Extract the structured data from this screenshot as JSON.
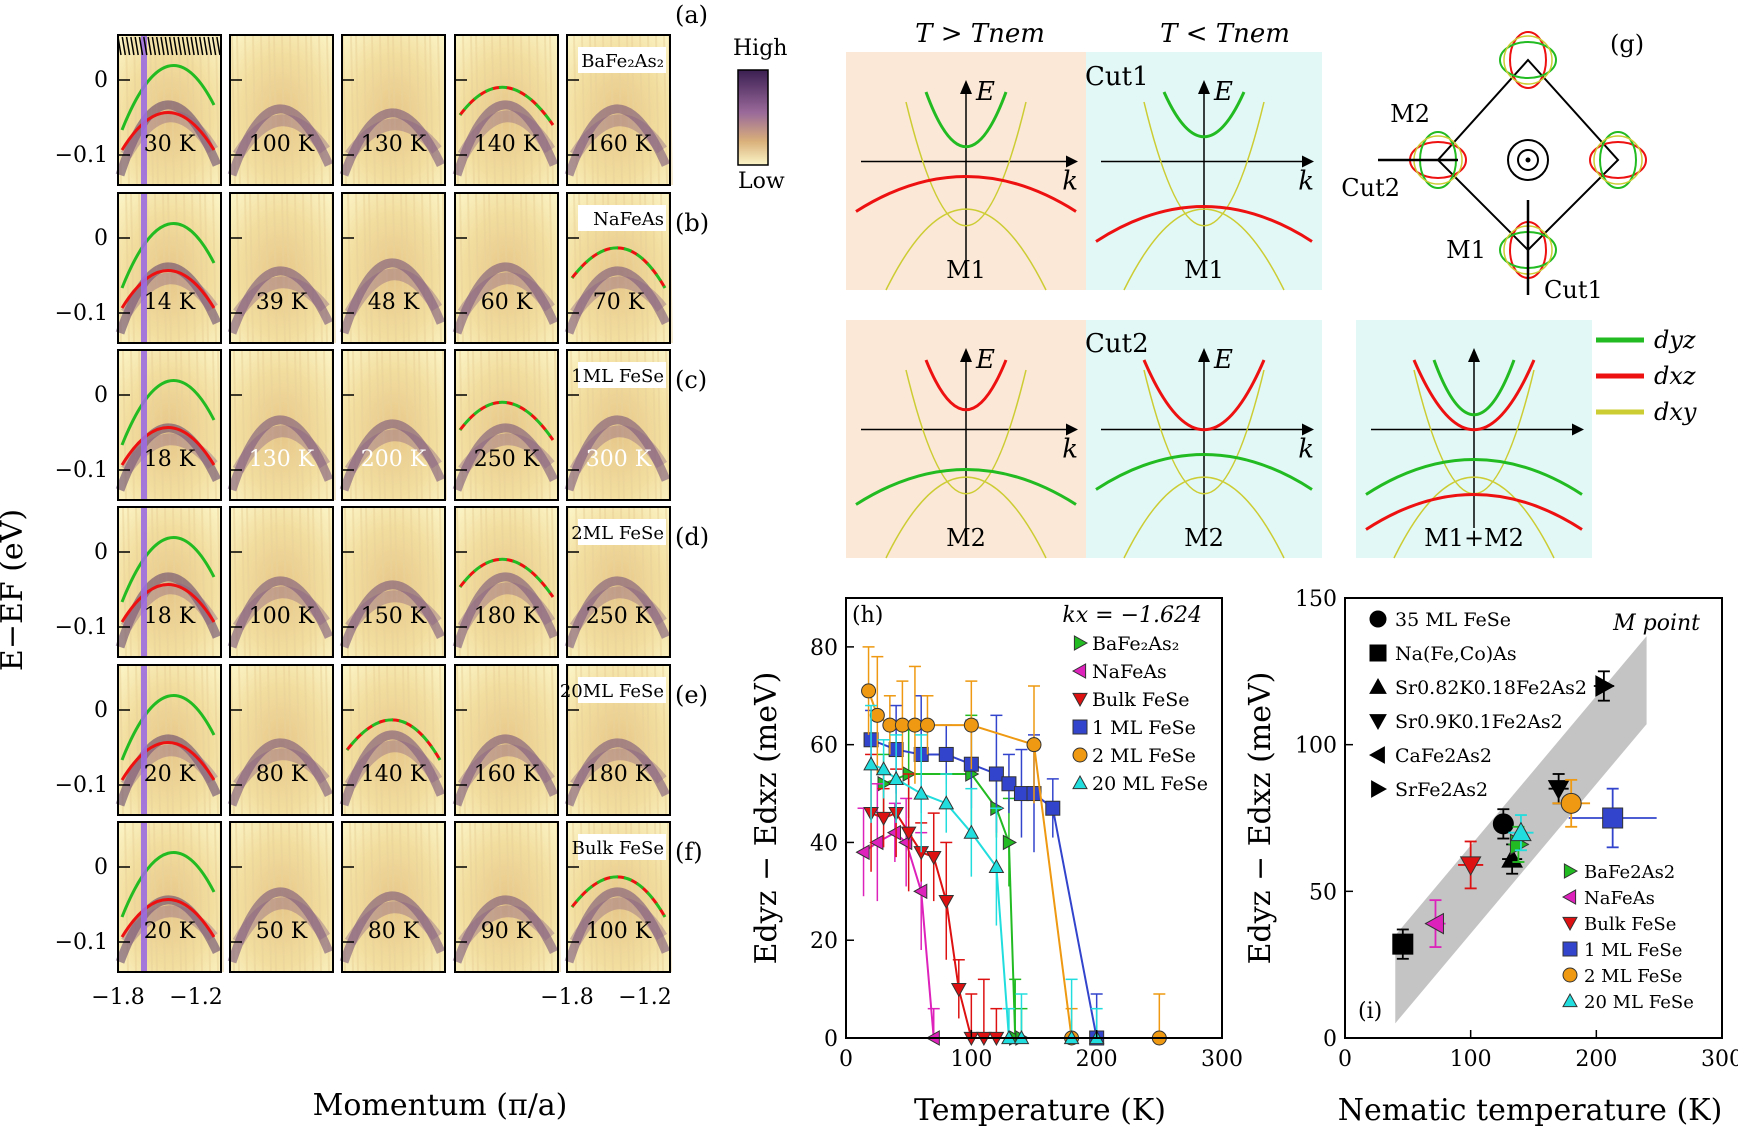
{
  "figure": {
    "arpes": {
      "panel_labels": [
        "(a)",
        "(b)",
        "(c)",
        "(d)",
        "(e)",
        "(f)"
      ],
      "materials": [
        "BaFe₂As₂",
        "NaFeAs",
        "1ML FeSe",
        "2ML FeSe",
        "20ML FeSe",
        "Bulk FeSe"
      ],
      "temps": [
        [
          "30 K",
          "100 K",
          "130 K",
          "140 K",
          "160 K"
        ],
        [
          "14 K",
          "39 K",
          "48 K",
          "60 K",
          "70 K"
        ],
        [
          "18 K",
          "130 K",
          "200 K",
          "250 K",
          "300 K"
        ],
        [
          "18 K",
          "100 K",
          "150 K",
          "180 K",
          "250 K"
        ],
        [
          "20 K",
          "80 K",
          "140 K",
          "160 K",
          "180 K"
        ],
        [
          "20 K",
          "50 K",
          "80 K",
          "90 K",
          "100 K"
        ]
      ],
      "y_ticks": [
        "0",
        "−0.1"
      ],
      "x_ticks": [
        "−1.8",
        "−1.2"
      ],
      "y_label": "E−EF (eV)",
      "x_label": "Momentum (π/a)",
      "colorbar_high": "High",
      "colorbar_low": "Low"
    },
    "schematics": {
      "label_g": "(g)",
      "t_above": "T > Tnem",
      "t_below": "T < Tnem",
      "cut1": "Cut1",
      "cut2": "Cut2",
      "axis_e": "E",
      "axis_k": "k",
      "m1": "M1",
      "m2": "M2",
      "m1m2": "M1+M2",
      "legend": [
        "dyz",
        "dxz",
        "dxy"
      ],
      "colors": {
        "dyz": "#22bb22",
        "dxz": "#ee1111",
        "dxy": "#cccc33",
        "warm": "#fbe8d6",
        "cool": "#e2f8f6"
      }
    },
    "chart_data": [
      {
        "type": "line",
        "panel": "(h)",
        "annotation": "kx = −1.624",
        "xlabel": "Temperature (K)",
        "ylabel": "Edyz − Edxz (meV)",
        "xlim": [
          0,
          300
        ],
        "ylim": [
          0,
          90
        ],
        "x_ticks": [
          0,
          100,
          200,
          300
        ],
        "y_ticks": [
          0,
          20,
          40,
          60,
          80
        ],
        "series": [
          {
            "name": "BaFe₂As₂",
            "color": "#22bb22",
            "marker": "tri-right",
            "x": [
              30,
              50,
              100,
              120,
              130,
              135,
              140
            ],
            "y": [
              52,
              54,
              54,
              47,
              40,
              0,
              0
            ]
          },
          {
            "name": "NaFeAs",
            "color": "#dd22bb",
            "marker": "tri-left",
            "x": [
              14,
              25,
              39,
              48,
              60,
              70
            ],
            "y": [
              38,
              40,
              42,
              40,
              30,
              0
            ]
          },
          {
            "name": "Bulk FeSe",
            "color": "#dd1111",
            "marker": "tri-down",
            "x": [
              20,
              30,
              40,
              50,
              60,
              70,
              80,
              90,
              100,
              110,
              120
            ],
            "y": [
              46,
              45,
              46,
              42,
              38,
              37,
              28,
              10,
              0,
              0,
              0
            ]
          },
          {
            "name": "1 ML FeSe",
            "color": "#3344cc",
            "marker": "square",
            "x": [
              20,
              40,
              60,
              80,
              100,
              120,
              130,
              140,
              150,
              165,
              200
            ],
            "y": [
              61,
              59,
              58,
              58,
              56,
              54,
              52,
              50,
              50,
              47,
              0
            ]
          },
          {
            "name": "2 ML FeSe",
            "color": "#ee9911",
            "marker": "circle",
            "x": [
              18,
              25,
              35,
              45,
              55,
              65,
              100,
              150,
              180,
              250
            ],
            "y": [
              71,
              66,
              64,
              64,
              64,
              64,
              64,
              60,
              0,
              0
            ]
          },
          {
            "name": "20 ML FeSe",
            "color": "#22dddd",
            "marker": "tri-up",
            "x": [
              20,
              30,
              40,
              60,
              80,
              100,
              120,
              130,
              140,
              180,
              200
            ],
            "y": [
              56,
              55,
              53,
              50,
              48,
              42,
              35,
              0,
              0,
              0,
              0
            ]
          }
        ]
      },
      {
        "type": "scatter",
        "panel": "(i)",
        "annotation": "M point",
        "xlabel": "Nematic temperature (K)",
        "ylabel": "Edyz − Edxz (meV)",
        "xlim": [
          0,
          300
        ],
        "ylim": [
          0,
          150
        ],
        "x_ticks": [
          0,
          100,
          200,
          300
        ],
        "y_ticks": [
          0,
          50,
          100,
          150
        ],
        "legend_black": [
          "35 ML FeSe",
          "Na(Fe,Co)As",
          "Sr0.82K0.18Fe2As2",
          "Sr0.9K0.1Fe2As2",
          "CaFe2As2",
          "SrFe2As2"
        ],
        "legend_color": [
          "BaFe2As2",
          "NaFeAs",
          "Bulk FeSe",
          "1 ML FeSe",
          "2 ML FeSe",
          "20 ML FeSe"
        ],
        "band": {
          "x": [
            40,
            240
          ],
          "y_center": [
            20,
            122
          ]
        },
        "points": [
          {
            "name": "35 ML FeSe",
            "marker": "circle",
            "color": "#000000",
            "x": 126,
            "y": 73,
            "xerr": 8,
            "yerr": 5
          },
          {
            "name": "Na(Fe,Co)As",
            "marker": "square",
            "color": "#000000",
            "x": 46,
            "y": 32,
            "xerr": 8,
            "yerr": 5
          },
          {
            "name": "Sr0.82K0.18Fe2As2",
            "marker": "tri-up",
            "color": "#000000",
            "x": 133,
            "y": 61,
            "xerr": 8,
            "yerr": 5
          },
          {
            "name": "Sr0.9K0.1Fe2As2",
            "marker": "tri-down",
            "color": "#000000",
            "x": 170,
            "y": 85,
            "xerr": 8,
            "yerr": 5
          },
          {
            "name": "SrFe2As2",
            "marker": "tri-right",
            "color": "#000000",
            "x": 206,
            "y": 120,
            "xerr": 8,
            "yerr": 5
          },
          {
            "name": "BaFe2As2",
            "marker": "tri-right",
            "color": "#22bb22",
            "x": 138,
            "y": 66,
            "xerr": 8,
            "yerr": 6
          },
          {
            "name": "NaFeAs",
            "marker": "tri-left",
            "color": "#dd22bb",
            "x": 72,
            "y": 39,
            "xerr": 8,
            "yerr": 8
          },
          {
            "name": "Bulk FeSe",
            "marker": "tri-down",
            "color": "#dd1111",
            "x": 100,
            "y": 59,
            "xerr": 10,
            "yerr": 8
          },
          {
            "name": "1 ML FeSe",
            "marker": "square",
            "color": "#3344cc",
            "x": 213,
            "y": 75,
            "xerr": 35,
            "yerr": 10
          },
          {
            "name": "2 ML FeSe",
            "marker": "circle",
            "color": "#ee9911",
            "x": 180,
            "y": 80,
            "xerr": 15,
            "yerr": 8
          },
          {
            "name": "20 ML FeSe",
            "marker": "tri-up",
            "color": "#22dddd",
            "x": 140,
            "y": 70,
            "xerr": 10,
            "yerr": 6
          }
        ]
      }
    ]
  }
}
